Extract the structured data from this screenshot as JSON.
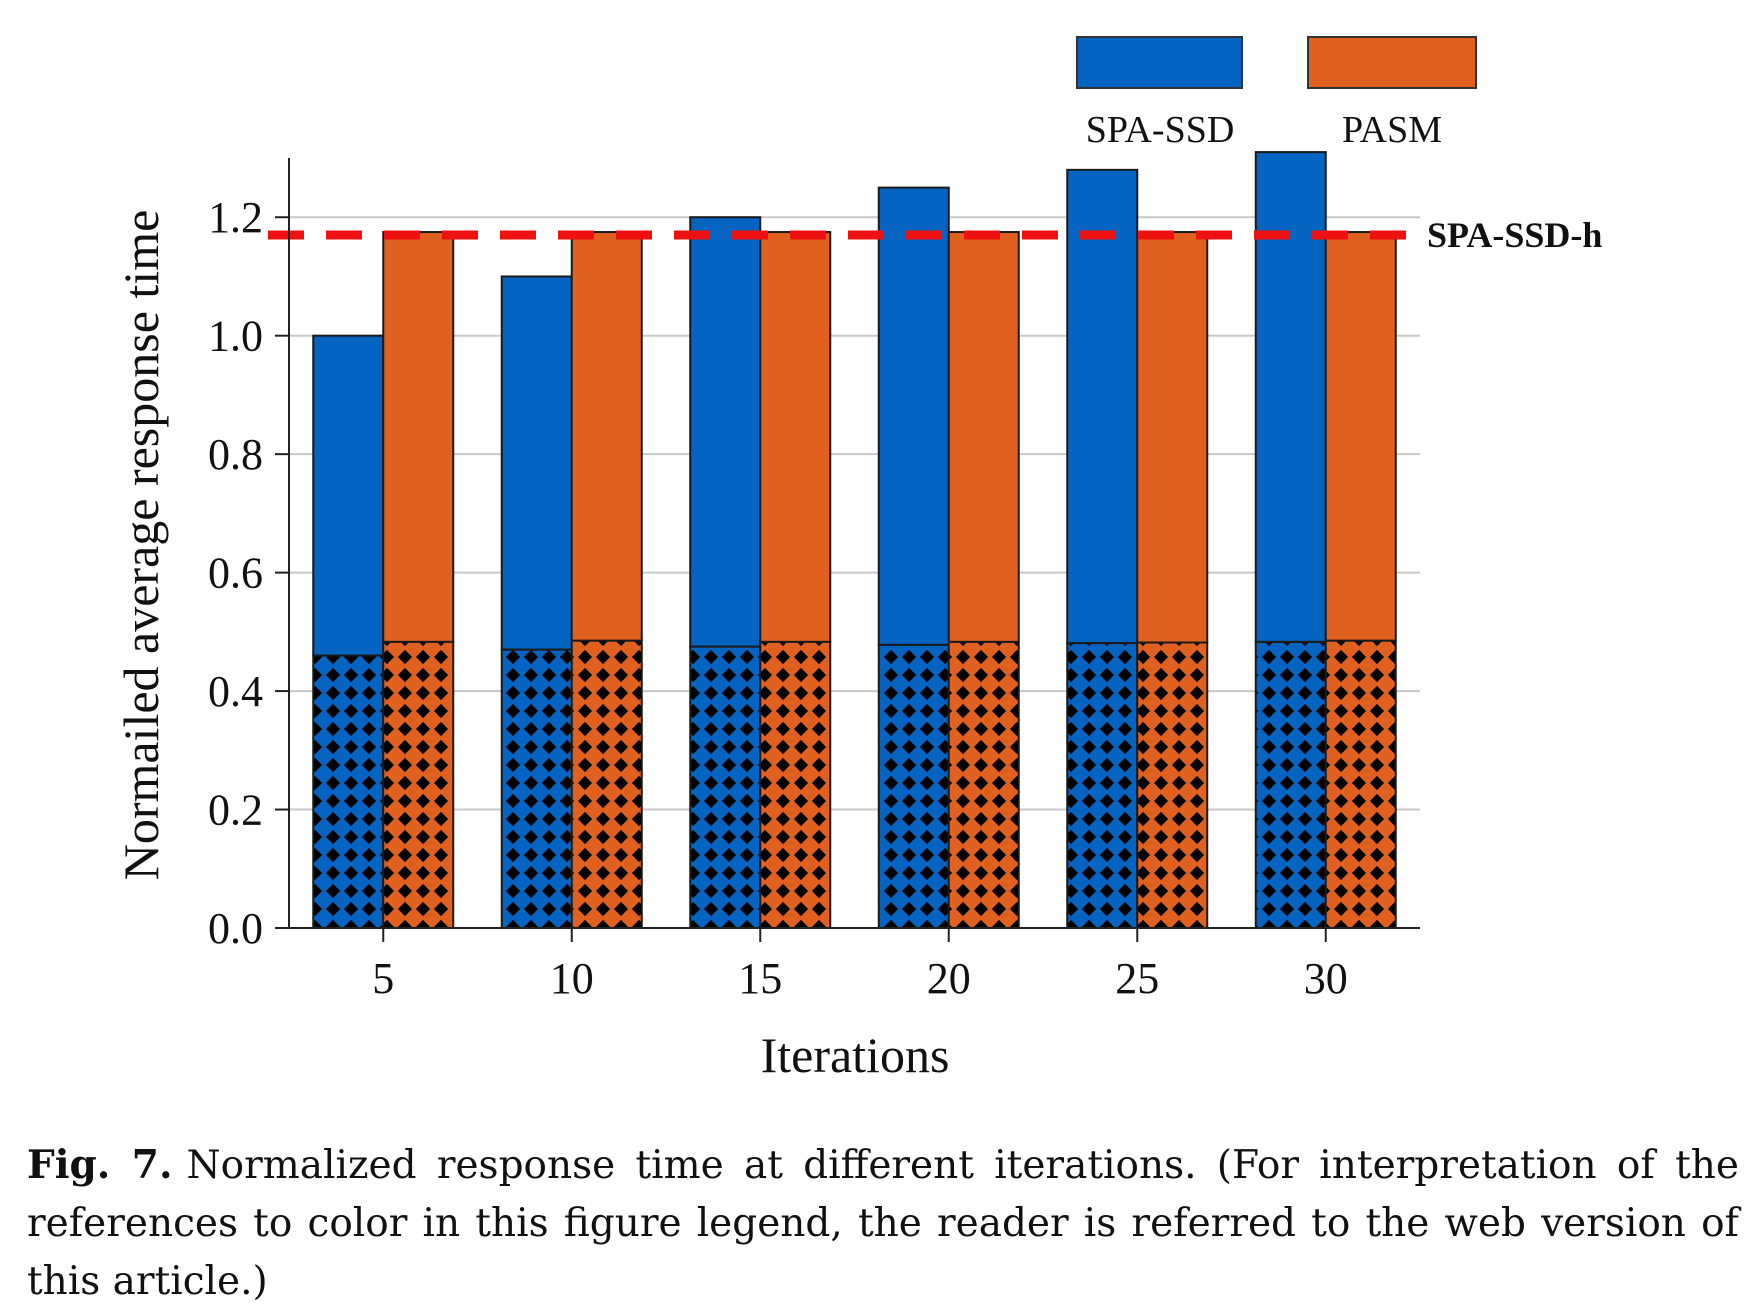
{
  "chart_data": {
    "type": "bar",
    "categories": [
      "5",
      "10",
      "15",
      "20",
      "25",
      "30"
    ],
    "xlabel": "Iterations",
    "ylabel": "Normailed average response time",
    "ylim": [
      0,
      1.3
    ],
    "yticks": [
      "0.0",
      "0.2",
      "0.4",
      "0.6",
      "0.8",
      "1.0",
      "1.2"
    ],
    "grid": true,
    "legend_position": "top-right",
    "series": [
      {
        "name": "SPA-SSD",
        "color": "#0563c1",
        "values": [
          1.0,
          1.1,
          1.2,
          1.25,
          1.28,
          1.31
        ],
        "hatched_base": [
          0.46,
          0.47,
          0.475,
          0.478,
          0.481,
          0.483
        ]
      },
      {
        "name": "PASM",
        "color": "#e06020",
        "values": [
          1.175,
          1.175,
          1.175,
          1.175,
          1.175,
          1.175
        ],
        "hatched_base": [
          0.483,
          0.485,
          0.483,
          0.483,
          0.482,
          0.485
        ]
      }
    ],
    "reference_line": {
      "label": "SPA-SSD-h",
      "value": 1.17,
      "color": "#ee1111"
    }
  },
  "caption": {
    "number": "Fig. 7.",
    "text": "Normalized response time at different iterations.  (For interpretation of the references to color in this figure legend, the reader is referred to the web version of this article.)"
  }
}
